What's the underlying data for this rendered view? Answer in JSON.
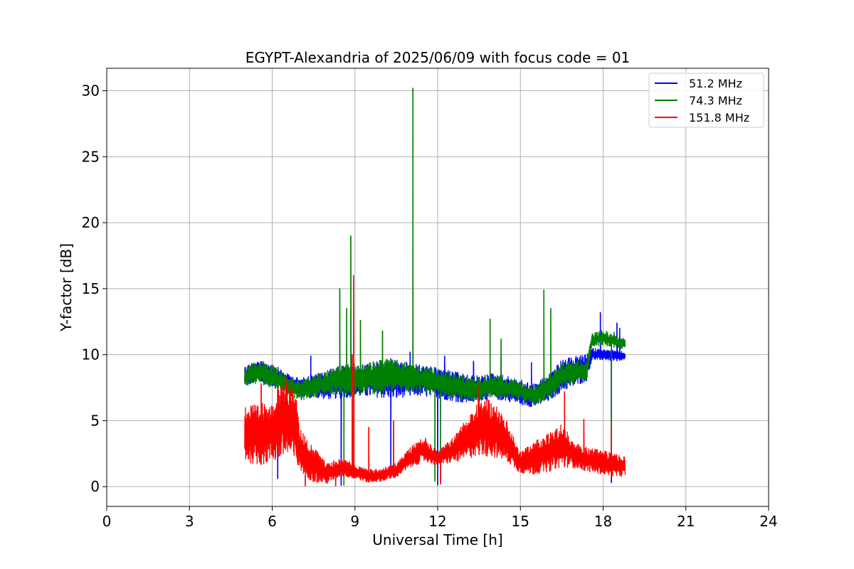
{
  "chart_data": {
    "type": "line",
    "title": "EGYPT-Alexandria of 2025/06/09 with focus code = 01",
    "xlabel": "Universal Time [h]",
    "ylabel": "Y-factor [dB]",
    "xlim": [
      0,
      24
    ],
    "ylim": [
      -1.5,
      31.7
    ],
    "xticks": [
      0,
      3,
      6,
      9,
      12,
      15,
      18,
      21,
      24
    ],
    "yticks": [
      0,
      5,
      10,
      15,
      20,
      25,
      30
    ],
    "grid": true,
    "legend_position": "top-right",
    "series": [
      {
        "name": "51.2 MHz",
        "color": "#0000ff",
        "low": [
          [
            5.0,
            7.6
          ],
          [
            5.5,
            7.9
          ],
          [
            6.0,
            7.6
          ],
          [
            6.5,
            7.3
          ],
          [
            7.0,
            6.8
          ],
          [
            7.5,
            6.7
          ],
          [
            8.0,
            6.6
          ],
          [
            8.5,
            6.7
          ],
          [
            9.0,
            6.8
          ],
          [
            9.5,
            6.8
          ],
          [
            10.0,
            6.7
          ],
          [
            10.5,
            6.6
          ],
          [
            11.0,
            6.9
          ],
          [
            11.5,
            6.8
          ],
          [
            12.0,
            6.7
          ],
          [
            12.5,
            6.5
          ],
          [
            13.0,
            6.3
          ],
          [
            13.5,
            6.5
          ],
          [
            14.0,
            6.6
          ],
          [
            14.5,
            6.5
          ],
          [
            15.0,
            6.2
          ],
          [
            15.5,
            6.0
          ],
          [
            16.0,
            6.4
          ],
          [
            16.5,
            7.2
          ],
          [
            17.0,
            7.6
          ],
          [
            17.4,
            8.0
          ],
          [
            17.6,
            9.6
          ],
          [
            18.0,
            9.6
          ],
          [
            18.5,
            9.5
          ],
          [
            18.8,
            9.6
          ]
        ],
        "high": [
          [
            5.0,
            9.2
          ],
          [
            5.5,
            9.5
          ],
          [
            6.0,
            9.4
          ],
          [
            6.5,
            8.6
          ],
          [
            7.0,
            8.2
          ],
          [
            7.5,
            8.5
          ],
          [
            8.0,
            8.8
          ],
          [
            8.5,
            9.2
          ],
          [
            9.0,
            9.1
          ],
          [
            9.5,
            9.3
          ],
          [
            10.0,
            9.5
          ],
          [
            10.5,
            9.6
          ],
          [
            11.0,
            9.4
          ],
          [
            11.5,
            9.2
          ],
          [
            12.0,
            9.0
          ],
          [
            12.5,
            8.8
          ],
          [
            13.0,
            8.5
          ],
          [
            13.5,
            8.4
          ],
          [
            14.0,
            8.6
          ],
          [
            14.5,
            8.4
          ],
          [
            15.0,
            8.1
          ],
          [
            15.5,
            7.8
          ],
          [
            16.0,
            8.5
          ],
          [
            16.5,
            9.6
          ],
          [
            17.0,
            9.9
          ],
          [
            17.4,
            10.0
          ],
          [
            17.6,
            10.5
          ],
          [
            18.0,
            10.4
          ],
          [
            18.5,
            10.3
          ],
          [
            18.8,
            10.2
          ]
        ],
        "spikes": [
          [
            7.4,
            9.9
          ],
          [
            10.3,
            9.7
          ],
          [
            11.0,
            10.2
          ],
          [
            12.25,
            9.9
          ],
          [
            13.3,
            9.5
          ],
          [
            14.3,
            9.8
          ],
          [
            15.4,
            9.4
          ],
          [
            17.9,
            13.2
          ],
          [
            18.5,
            12.4
          ],
          [
            18.6,
            12.0
          ]
        ],
        "dips": [
          [
            6.2,
            0.6
          ],
          [
            8.5,
            0.1
          ],
          [
            10.3,
            0.7
          ],
          [
            12.0,
            0.1
          ],
          [
            18.3,
            0.3
          ]
        ]
      },
      {
        "name": "74.3 MHz",
        "color": "#008000",
        "low": [
          [
            5.0,
            7.6
          ],
          [
            5.5,
            7.8
          ],
          [
            6.0,
            7.5
          ],
          [
            6.5,
            7.0
          ],
          [
            7.0,
            6.5
          ],
          [
            7.5,
            6.8
          ],
          [
            8.0,
            7.0
          ],
          [
            8.5,
            7.0
          ],
          [
            9.0,
            6.9
          ],
          [
            9.5,
            7.0
          ],
          [
            10.0,
            7.0
          ],
          [
            10.5,
            7.1
          ],
          [
            11.0,
            7.2
          ],
          [
            11.5,
            7.1
          ],
          [
            12.0,
            6.9
          ],
          [
            12.5,
            6.7
          ],
          [
            13.0,
            6.4
          ],
          [
            13.5,
            6.6
          ],
          [
            14.0,
            6.8
          ],
          [
            14.5,
            6.7
          ],
          [
            15.0,
            6.5
          ],
          [
            15.5,
            6.2
          ],
          [
            16.0,
            6.6
          ],
          [
            16.5,
            7.4
          ],
          [
            17.0,
            7.8
          ],
          [
            17.4,
            8.1
          ],
          [
            17.6,
            10.6
          ],
          [
            18.0,
            10.7
          ],
          [
            18.5,
            10.5
          ],
          [
            18.8,
            10.4
          ]
        ],
        "high": [
          [
            5.0,
            9.1
          ],
          [
            5.5,
            9.6
          ],
          [
            6.0,
            9.3
          ],
          [
            6.5,
            8.4
          ],
          [
            7.0,
            8.1
          ],
          [
            7.5,
            8.4
          ],
          [
            8.0,
            8.9
          ],
          [
            8.5,
            9.2
          ],
          [
            9.0,
            9.3
          ],
          [
            9.5,
            9.4
          ],
          [
            10.0,
            9.7
          ],
          [
            10.5,
            9.6
          ],
          [
            11.0,
            9.3
          ],
          [
            11.5,
            9.1
          ],
          [
            12.0,
            8.9
          ],
          [
            12.5,
            8.6
          ],
          [
            13.0,
            8.4
          ],
          [
            13.5,
            8.3
          ],
          [
            14.0,
            8.5
          ],
          [
            14.5,
            8.2
          ],
          [
            15.0,
            8.0
          ],
          [
            15.5,
            7.7
          ],
          [
            16.0,
            8.4
          ],
          [
            16.5,
            9.4
          ],
          [
            17.0,
            9.6
          ],
          [
            17.4,
            9.6
          ],
          [
            17.6,
            11.6
          ],
          [
            18.0,
            11.9
          ],
          [
            18.5,
            11.4
          ],
          [
            18.8,
            11.3
          ]
        ],
        "spikes": [
          [
            8.45,
            15.0
          ],
          [
            8.85,
            19.0
          ],
          [
            8.7,
            13.5
          ],
          [
            9.2,
            12.6
          ],
          [
            10.0,
            11.8
          ],
          [
            11.1,
            30.2
          ],
          [
            13.9,
            12.7
          ],
          [
            14.3,
            11.2
          ],
          [
            15.85,
            14.9
          ],
          [
            16.1,
            13.5
          ],
          [
            18.4,
            11.7
          ]
        ],
        "dips": [
          [
            8.6,
            0.1
          ],
          [
            11.9,
            0.4
          ],
          [
            12.1,
            0.2
          ],
          [
            18.3,
            0.8
          ]
        ]
      },
      {
        "name": "151.8 MHz",
        "color": "#ff0000",
        "low": [
          [
            5.0,
            1.9
          ],
          [
            5.5,
            1.6
          ],
          [
            6.0,
            1.8
          ],
          [
            6.5,
            2.2
          ],
          [
            7.0,
            1.2
          ],
          [
            7.5,
            0.3
          ],
          [
            8.0,
            0.2
          ],
          [
            8.5,
            0.8
          ],
          [
            9.0,
            0.6
          ],
          [
            9.5,
            0.3
          ],
          [
            10.0,
            0.4
          ],
          [
            10.5,
            0.7
          ],
          [
            11.0,
            1.4
          ],
          [
            11.5,
            1.9
          ],
          [
            12.0,
            1.6
          ],
          [
            12.5,
            1.8
          ],
          [
            13.0,
            2.0
          ],
          [
            13.5,
            2.4
          ],
          [
            14.0,
            2.2
          ],
          [
            14.5,
            1.9
          ],
          [
            15.0,
            1.0
          ],
          [
            15.5,
            0.9
          ],
          [
            16.0,
            1.1
          ],
          [
            16.5,
            1.5
          ],
          [
            17.0,
            1.4
          ],
          [
            17.5,
            1.1
          ],
          [
            18.0,
            0.9
          ],
          [
            18.5,
            0.7
          ],
          [
            18.8,
            0.8
          ]
        ],
        "high": [
          [
            5.0,
            6.4
          ],
          [
            5.5,
            6.1
          ],
          [
            6.0,
            6.8
          ],
          [
            6.5,
            8.2
          ],
          [
            6.8,
            8.0
          ],
          [
            7.0,
            4.5
          ],
          [
            7.5,
            3.0
          ],
          [
            8.0,
            1.8
          ],
          [
            8.5,
            2.2
          ],
          [
            9.0,
            1.7
          ],
          [
            9.5,
            1.3
          ],
          [
            10.0,
            1.4
          ],
          [
            10.5,
            1.8
          ],
          [
            11.0,
            3.0
          ],
          [
            11.5,
            3.8
          ],
          [
            12.0,
            2.7
          ],
          [
            12.5,
            3.6
          ],
          [
            13.0,
            5.0
          ],
          [
            13.5,
            6.9
          ],
          [
            14.0,
            6.5
          ],
          [
            14.5,
            5.0
          ],
          [
            15.0,
            2.7
          ],
          [
            15.5,
            3.4
          ],
          [
            16.0,
            4.0
          ],
          [
            16.5,
            4.8
          ],
          [
            17.0,
            3.3
          ],
          [
            17.5,
            2.9
          ],
          [
            18.0,
            2.8
          ],
          [
            18.5,
            2.5
          ],
          [
            18.8,
            2.3
          ]
        ],
        "spikes": [
          [
            5.6,
            7.8
          ],
          [
            8.95,
            16.0
          ],
          [
            8.9,
            10.0
          ],
          [
            9.5,
            4.5
          ],
          [
            10.4,
            5.0
          ],
          [
            13.5,
            7.6
          ],
          [
            16.6,
            7.2
          ],
          [
            17.3,
            5.1
          ],
          [
            18.3,
            4.6
          ]
        ],
        "dips": [
          [
            7.2,
            0.05
          ],
          [
            8.3,
            0.05
          ],
          [
            12.1,
            0.2
          ]
        ]
      }
    ]
  }
}
